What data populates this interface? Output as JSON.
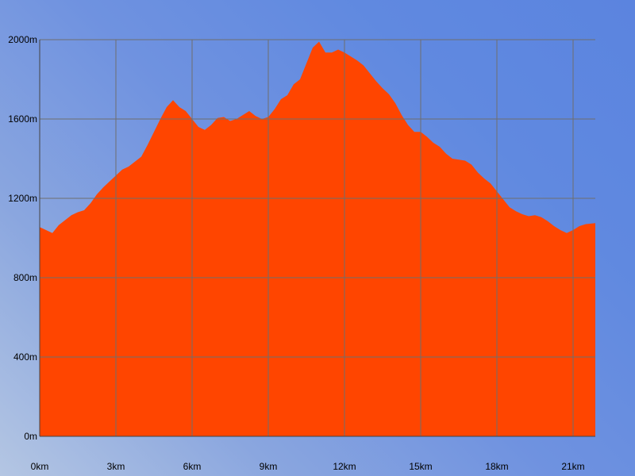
{
  "chart_data": {
    "type": "area",
    "title": "",
    "xlabel": "",
    "ylabel": "",
    "xlim": [
      0,
      21.875
    ],
    "ylim": [
      0,
      2000
    ],
    "x_ticks": [
      {
        "value": 0,
        "label": "0km"
      },
      {
        "value": 3,
        "label": "3km"
      },
      {
        "value": 6,
        "label": "6km"
      },
      {
        "value": 9,
        "label": "9km"
      },
      {
        "value": 12,
        "label": "12km"
      },
      {
        "value": 15,
        "label": "15km"
      },
      {
        "value": 18,
        "label": "18km"
      },
      {
        "value": 21,
        "label": "21km"
      }
    ],
    "y_ticks": [
      {
        "value": 0,
        "label": "0m"
      },
      {
        "value": 400,
        "label": "400m"
      },
      {
        "value": 800,
        "label": "800m"
      },
      {
        "value": 1200,
        "label": "1200m"
      },
      {
        "value": 1600,
        "label": "1600m"
      },
      {
        "value": 2000,
        "label": "2000m"
      }
    ],
    "grid": true,
    "colors": {
      "fill": "#ff4500",
      "grid": "#6e6e6e",
      "axis": "#444444"
    },
    "series": [
      {
        "x": [
          0,
          0.25,
          0.5,
          0.75,
          1.0,
          1.25,
          1.5,
          1.75,
          2.0,
          2.25,
          2.5,
          2.75,
          3.0,
          3.25,
          3.5,
          3.75,
          4.0,
          4.25,
          4.5,
          4.75,
          5.0,
          5.25,
          5.5,
          5.75,
          6.0,
          6.25,
          6.5,
          6.75,
          7.0,
          7.25,
          7.5,
          7.75,
          8.0,
          8.25,
          8.5,
          8.75,
          9.0,
          9.25,
          9.5,
          9.75,
          10.0,
          10.25,
          10.5,
          10.75,
          11.0,
          11.25,
          11.5,
          11.75,
          12.0,
          12.25,
          12.5,
          12.75,
          13.0,
          13.25,
          13.5,
          13.75,
          14.0,
          14.25,
          14.5,
          14.75,
          15.0,
          15.25,
          15.5,
          15.75,
          16.0,
          16.25,
          16.5,
          16.75,
          17.0,
          17.25,
          17.5,
          17.75,
          18.0,
          18.25,
          18.5,
          18.75,
          19.0,
          19.25,
          19.5,
          19.75,
          20.0,
          20.25,
          20.5,
          20.75,
          21.0,
          21.25,
          21.5,
          21.875
        ],
        "y": [
          1055,
          1040,
          1025,
          1065,
          1090,
          1115,
          1130,
          1140,
          1175,
          1220,
          1255,
          1285,
          1315,
          1345,
          1360,
          1385,
          1410,
          1470,
          1535,
          1600,
          1660,
          1695,
          1660,
          1640,
          1600,
          1560,
          1545,
          1570,
          1605,
          1610,
          1590,
          1600,
          1620,
          1640,
          1615,
          1600,
          1610,
          1650,
          1700,
          1720,
          1775,
          1800,
          1880,
          1960,
          1990,
          1935,
          1935,
          1950,
          1935,
          1915,
          1895,
          1870,
          1830,
          1790,
          1755,
          1725,
          1680,
          1620,
          1570,
          1535,
          1535,
          1510,
          1480,
          1460,
          1425,
          1400,
          1395,
          1390,
          1370,
          1330,
          1300,
          1275,
          1235,
          1195,
          1155,
          1135,
          1120,
          1110,
          1115,
          1105,
          1085,
          1060,
          1040,
          1025,
          1040,
          1060,
          1070,
          1075
        ]
      }
    ]
  }
}
